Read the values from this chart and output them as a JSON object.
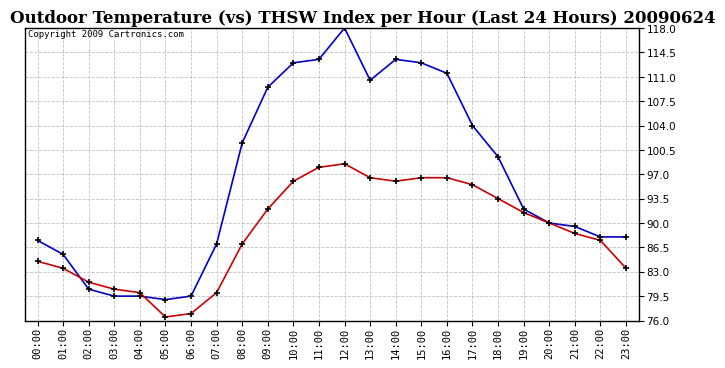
{
  "title": "Outdoor Temperature (vs) THSW Index per Hour (Last 24 Hours) 20090624",
  "copyright": "Copyright 2009 Cartronics.com",
  "hours": [
    "00:00",
    "01:00",
    "02:00",
    "03:00",
    "04:00",
    "05:00",
    "06:00",
    "07:00",
    "08:00",
    "09:00",
    "10:00",
    "11:00",
    "12:00",
    "13:00",
    "14:00",
    "15:00",
    "16:00",
    "17:00",
    "18:00",
    "19:00",
    "20:00",
    "21:00",
    "22:00",
    "23:00"
  ],
  "outdoor_temp": [
    84.5,
    83.5,
    81.5,
    80.5,
    80.0,
    76.5,
    77.0,
    80.0,
    87.0,
    92.0,
    96.0,
    98.0,
    98.5,
    96.5,
    96.0,
    96.5,
    96.5,
    95.5,
    93.5,
    91.5,
    90.0,
    88.5,
    87.5,
    83.5
  ],
  "thsw_index": [
    87.5,
    85.5,
    80.5,
    79.5,
    79.5,
    79.0,
    79.5,
    87.0,
    101.5,
    109.5,
    113.0,
    113.5,
    118.0,
    110.5,
    113.5,
    113.0,
    111.5,
    104.0,
    99.5,
    92.0,
    90.0,
    89.5,
    88.0,
    88.0
  ],
  "temp_color": "#cc0000",
  "thsw_color": "#0000cc",
  "bg_color": "#ffffff",
  "grid_color": "#bbbbbb",
  "ylim": [
    76.0,
    118.0
  ],
  "yticks": [
    76.0,
    79.5,
    83.0,
    86.5,
    90.0,
    93.5,
    97.0,
    100.5,
    104.0,
    107.5,
    111.0,
    114.5,
    118.0
  ],
  "title_fontsize": 12,
  "tick_fontsize": 7.5,
  "copyright_fontsize": 6.5
}
